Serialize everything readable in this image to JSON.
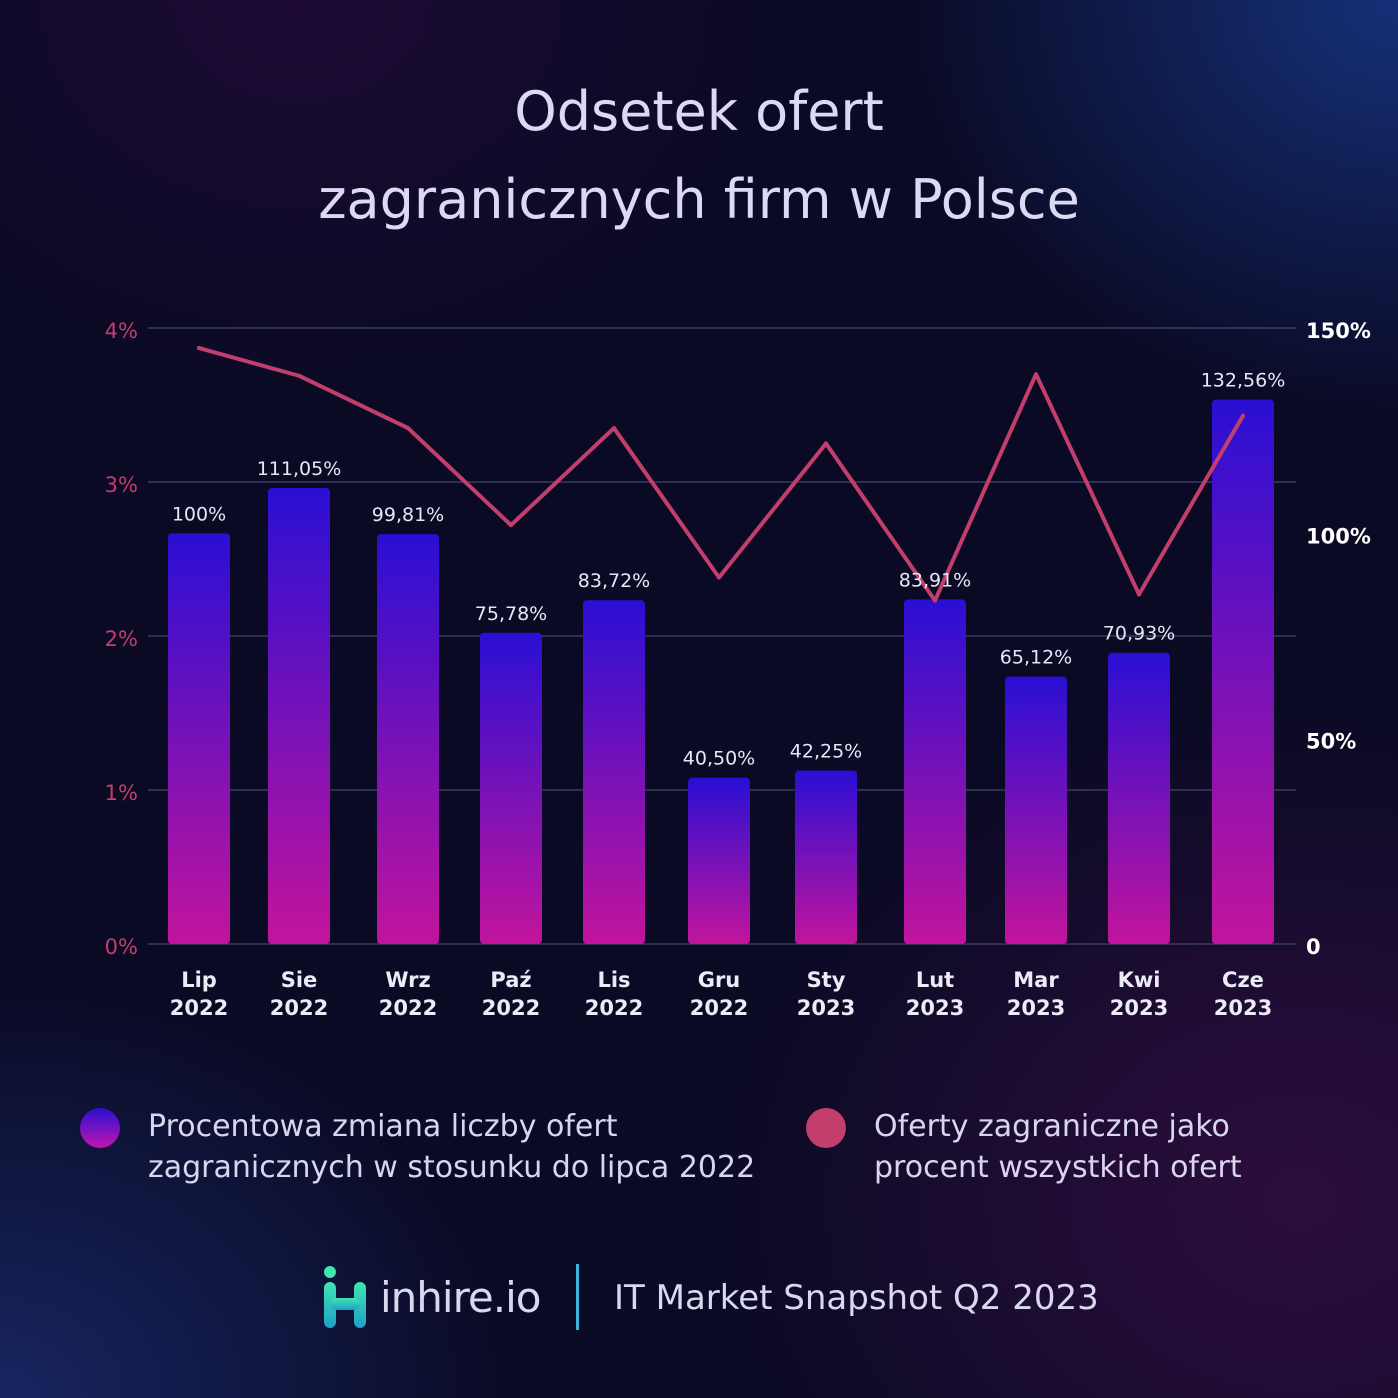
{
  "title_line1": "Odsetek ofert",
  "title_line2": "zagranicznych firm w Polsce",
  "chart_data": {
    "type": "bar",
    "categories": [
      [
        "Lip",
        "2022"
      ],
      [
        "Sie",
        "2022"
      ],
      [
        "Wrz",
        "2022"
      ],
      [
        "Paź",
        "2022"
      ],
      [
        "Lis",
        "2022"
      ],
      [
        "Gru",
        "2022"
      ],
      [
        "Sty",
        "2023"
      ],
      [
        "Lut",
        "2023"
      ],
      [
        "Mar",
        "2023"
      ],
      [
        "Kwi",
        "2023"
      ],
      [
        "Cze",
        "2023"
      ]
    ],
    "series": [
      {
        "name": "Procentowa zmiana liczby ofert zagranicznych w stosunku do lipca 2022",
        "type": "bar",
        "axis": "right",
        "values": [
          100,
          111.05,
          99.81,
          75.78,
          83.72,
          40.5,
          42.25,
          83.91,
          65.12,
          70.93,
          132.56
        ],
        "labels": [
          "100%",
          "111,05%",
          "99,81%",
          "75,78%",
          "83,72%",
          "40,50%",
          "42,25%",
          "83,91%",
          "65,12%",
          "70,93%",
          "132,56%"
        ]
      },
      {
        "name": "Oferty zagraniczne jako procent wszystkich ofert",
        "type": "line",
        "axis": "left",
        "values": [
          3.87,
          3.69,
          3.35,
          2.72,
          3.35,
          2.38,
          3.25,
          2.23,
          3.7,
          2.27,
          3.43
        ]
      }
    ],
    "y_left": {
      "ticks": [
        0,
        1,
        2,
        3,
        4
      ],
      "tick_labels": [
        "0%",
        "1%",
        "2%",
        "3%",
        "4%"
      ],
      "ylim": [
        0,
        4
      ]
    },
    "y_right": {
      "ticks": [
        0,
        50,
        100,
        150
      ],
      "tick_labels": [
        "0",
        "50%",
        "100%",
        "150%"
      ],
      "ylim": [
        0,
        150
      ]
    },
    "grid": true,
    "legend_position": "bottom",
    "colors": {
      "bar_top": "#2a0fd4",
      "bar_bottom": "#c2149c",
      "line": "#c23e6c",
      "left_axis": "#c23e6c",
      "right_axis": "#ffffff",
      "grid": "#3a3a60"
    }
  },
  "legend": [
    {
      "text": "Procentowa zmiana liczby ofert zagranicznych w stosunku do lipca 2022"
    },
    {
      "text": "Oferty zagraniczne jako procent wszystkich ofert"
    }
  ],
  "footer": {
    "logo_text": "inhire.io",
    "report_text": "IT Market Snapshot Q2 2023"
  }
}
